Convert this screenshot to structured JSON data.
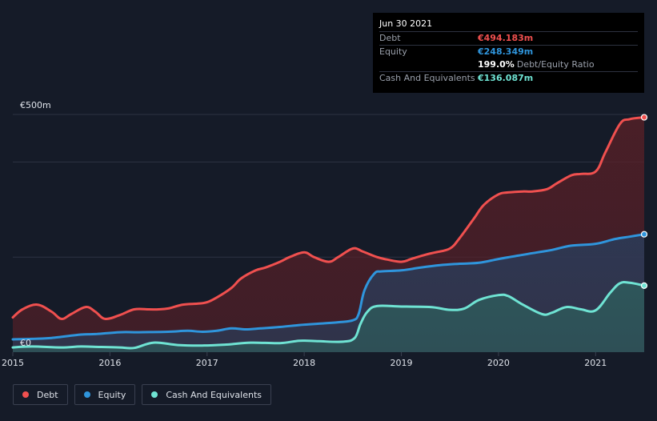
{
  "tooltip": {
    "date": "Jun 30 2021",
    "rows": [
      {
        "label": "Debt",
        "value": "€494.183m",
        "color": "#f0504f"
      },
      {
        "label": "Equity",
        "value": "€248.349m",
        "color": "#2f95dc"
      },
      {
        "ratio_value": "199.0%",
        "ratio_label": "Debt/Equity Ratio"
      },
      {
        "label": "Cash And Equivalents",
        "value": "€136.087m",
        "color": "#6fe3d3"
      }
    ]
  },
  "legend": [
    {
      "label": "Debt",
      "color": "#f0504f"
    },
    {
      "label": "Equity",
      "color": "#2f95dc"
    },
    {
      "label": "Cash And Equivalents",
      "color": "#6fe3d3"
    }
  ],
  "chart_data": {
    "type": "area",
    "ylim": [
      0,
      500
    ],
    "xlim": [
      2015.0,
      2021.5
    ],
    "y_tick_labels": [
      {
        "value": 500,
        "label": "€500m"
      },
      {
        "value": 0,
        "label": "€0"
      }
    ],
    "gridlines_y": [
      500,
      400,
      200
    ],
    "x_ticks": [
      2015,
      2016,
      2017,
      2018,
      2019,
      2020,
      2021
    ],
    "x_tick_labels": [
      "2015",
      "2016",
      "2017",
      "2018",
      "2019",
      "2020",
      "2021"
    ],
    "series": [
      {
        "name": "Debt",
        "color": "#f0504f",
        "x": [
          2015.0,
          2015.1,
          2015.25,
          2015.4,
          2015.5,
          2015.6,
          2015.75,
          2015.85,
          2015.95,
          2016.1,
          2016.25,
          2016.4,
          2016.5,
          2016.6,
          2016.75,
          2016.9,
          2017.0,
          2017.1,
          2017.25,
          2017.35,
          2017.5,
          2017.6,
          2017.75,
          2017.85,
          2018.0,
          2018.1,
          2018.25,
          2018.35,
          2018.5,
          2018.6,
          2018.75,
          2018.85,
          2019.0,
          2019.1,
          2019.25,
          2019.35,
          2019.5,
          2019.6,
          2019.75,
          2019.85,
          2020.0,
          2020.1,
          2020.25,
          2020.35,
          2020.5,
          2020.6,
          2020.75,
          2020.85,
          2021.0,
          2021.1,
          2021.25,
          2021.35,
          2021.5
        ],
        "values": [
          73,
          90,
          100,
          85,
          70,
          80,
          95,
          85,
          70,
          78,
          90,
          90,
          90,
          92,
          100,
          102,
          105,
          115,
          135,
          155,
          172,
          178,
          190,
          200,
          210,
          200,
          190,
          200,
          218,
          212,
          200,
          195,
          190,
          196,
          205,
          210,
          218,
          240,
          282,
          310,
          332,
          336,
          338,
          338,
          343,
          355,
          372,
          375,
          380,
          420,
          480,
          490,
          494
        ]
      },
      {
        "name": "Equity",
        "color": "#2f95dc",
        "x": [
          2015.0,
          2015.2,
          2015.4,
          2015.7,
          2015.85,
          2016.1,
          2016.3,
          2016.6,
          2016.8,
          2016.95,
          2017.1,
          2017.25,
          2017.4,
          2017.55,
          2017.75,
          2017.95,
          2018.15,
          2018.35,
          2018.5,
          2018.56,
          2018.62,
          2018.72,
          2018.8,
          2019.0,
          2019.2,
          2019.4,
          2019.6,
          2019.8,
          2020.0,
          2020.2,
          2020.4,
          2020.55,
          2020.75,
          2021.0,
          2021.2,
          2021.35,
          2021.5
        ]
      },
      {
        "name": "Cash And Equivalents",
        "color": "#6fe3d3"
      }
    ]
  }
}
